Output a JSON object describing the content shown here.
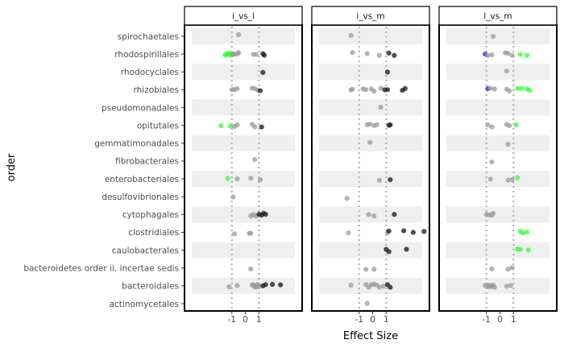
{
  "chart_data": {
    "type": "scatter",
    "xlabel": "Effect Size",
    "ylabel": "order",
    "xlim": [
      -4.5,
      4.2
    ],
    "x_ticks": [
      "-1",
      "0",
      "1"
    ],
    "x_tick_values": [
      -1,
      0,
      1
    ],
    "reference_lines": [
      -1,
      1
    ],
    "grid": false,
    "legend": "none",
    "categories": [
      "spirochaetales",
      "rhodospirillales",
      "rhodocyclales",
      "rhizobiales",
      "pseudomonadales",
      "opitutales",
      "gemmatimonadales",
      "fibrobacterales",
      "enterobacteriales",
      "desulfovibrionales",
      "cytophagales",
      "clostridiales",
      "caulobacterales",
      "bacteroidetes order ii. incertae sedis",
      "bacteroidales",
      "actinomycetales"
    ],
    "point_colors": {
      "ns": "#999999",
      "strong": "#222222",
      "up": "#33ff33",
      "down": "#2222ee"
    },
    "panels": [
      {
        "name": "i_vs_l",
        "points": [
          {
            "y": "spirochaetales",
            "x": -0.5,
            "c": "ns"
          },
          {
            "y": "rhodospirillales",
            "x": -1.5,
            "c": "up"
          },
          {
            "y": "rhodospirillales",
            "x": -1.4,
            "c": "up"
          },
          {
            "y": "rhodospirillales",
            "x": -1.3,
            "c": "up"
          },
          {
            "y": "rhodospirillales",
            "x": -1.2,
            "c": "up"
          },
          {
            "y": "rhodospirillales",
            "x": -1.1,
            "c": "up"
          },
          {
            "y": "rhodospirillales",
            "x": -1.0,
            "c": "up"
          },
          {
            "y": "rhodospirillales",
            "x": -0.9,
            "c": "ns"
          },
          {
            "y": "rhodospirillales",
            "x": -0.8,
            "c": "ns"
          },
          {
            "y": "rhodospirillales",
            "x": -0.6,
            "c": "ns"
          },
          {
            "y": "rhodospirillales",
            "x": -0.5,
            "c": "ns"
          },
          {
            "y": "rhodospirillales",
            "x": 0.6,
            "c": "ns"
          },
          {
            "y": "rhodospirillales",
            "x": 0.8,
            "c": "ns"
          },
          {
            "y": "rhodospirillales",
            "x": 1.3,
            "c": "strong"
          },
          {
            "y": "rhodospirillales",
            "x": 1.4,
            "c": "strong"
          },
          {
            "y": "rhodocyclales",
            "x": 1.3,
            "c": "strong"
          },
          {
            "y": "rhizobiales",
            "x": -1.0,
            "c": "ns"
          },
          {
            "y": "rhizobiales",
            "x": -0.8,
            "c": "ns"
          },
          {
            "y": "rhizobiales",
            "x": -0.6,
            "c": "ns"
          },
          {
            "y": "rhizobiales",
            "x": 0.5,
            "c": "ns"
          },
          {
            "y": "rhizobiales",
            "x": 0.7,
            "c": "ns"
          },
          {
            "y": "rhizobiales",
            "x": 0.9,
            "c": "ns"
          },
          {
            "y": "rhizobiales",
            "x": 1.1,
            "c": "strong"
          },
          {
            "y": "opitutales",
            "x": -1.8,
            "c": "up"
          },
          {
            "y": "opitutales",
            "x": -1.1,
            "c": "up"
          },
          {
            "y": "opitutales",
            "x": -0.8,
            "c": "ns"
          },
          {
            "y": "opitutales",
            "x": -0.6,
            "c": "ns"
          },
          {
            "y": "opitutales",
            "x": 0.5,
            "c": "ns"
          },
          {
            "y": "opitutales",
            "x": 0.7,
            "c": "ns"
          },
          {
            "y": "opitutales",
            "x": 1.2,
            "c": "strong"
          },
          {
            "y": "fibrobacterales",
            "x": 0.7,
            "c": "ns"
          },
          {
            "y": "enterobacteriales",
            "x": -1.3,
            "c": "up"
          },
          {
            "y": "enterobacteriales",
            "x": -0.6,
            "c": "ns"
          },
          {
            "y": "enterobacteriales",
            "x": 0.4,
            "c": "ns"
          },
          {
            "y": "enterobacteriales",
            "x": 1.1,
            "c": "ns"
          },
          {
            "y": "desulfovibrionales",
            "x": -0.9,
            "c": "ns"
          },
          {
            "y": "cytophagales",
            "x": 0.4,
            "c": "ns"
          },
          {
            "y": "cytophagales",
            "x": 0.6,
            "c": "ns"
          },
          {
            "y": "cytophagales",
            "x": 0.8,
            "c": "ns"
          },
          {
            "y": "cytophagales",
            "x": 1.0,
            "c": "strong"
          },
          {
            "y": "cytophagales",
            "x": 1.2,
            "c": "strong"
          },
          {
            "y": "cytophagales",
            "x": 1.35,
            "c": "strong"
          },
          {
            "y": "cytophagales",
            "x": 1.5,
            "c": "strong"
          },
          {
            "y": "clostridiales",
            "x": -0.8,
            "c": "ns"
          },
          {
            "y": "clostridiales",
            "x": 0.3,
            "c": "ns"
          },
          {
            "y": "clostridiales",
            "x": 0.4,
            "c": "ns"
          },
          {
            "y": "bacteroidetes order ii. incertae sedis",
            "x": 0.4,
            "c": "ns"
          },
          {
            "y": "bacteroidales",
            "x": -1.2,
            "c": "ns"
          },
          {
            "y": "bacteroidales",
            "x": -0.6,
            "c": "ns"
          },
          {
            "y": "bacteroidales",
            "x": 0.5,
            "c": "ns"
          },
          {
            "y": "bacteroidales",
            "x": 0.6,
            "c": "ns"
          },
          {
            "y": "bacteroidales",
            "x": 0.7,
            "c": "ns"
          },
          {
            "y": "bacteroidales",
            "x": 0.8,
            "c": "ns"
          },
          {
            "y": "bacteroidales",
            "x": 0.9,
            "c": "ns"
          },
          {
            "y": "bacteroidales",
            "x": 1.0,
            "c": "ns"
          },
          {
            "y": "bacteroidales",
            "x": 1.3,
            "c": "strong"
          },
          {
            "y": "bacteroidales",
            "x": 1.5,
            "c": "strong"
          },
          {
            "y": "bacteroidales",
            "x": 2.0,
            "c": "strong"
          },
          {
            "y": "bacteroidales",
            "x": 2.6,
            "c": "strong"
          }
        ]
      },
      {
        "name": "i_vs_m",
        "points": [
          {
            "y": "spirochaetales",
            "x": -1.6,
            "c": "ns"
          },
          {
            "y": "rhodospirillales",
            "x": -1.5,
            "c": "ns"
          },
          {
            "y": "rhodospirillales",
            "x": -0.4,
            "c": "ns"
          },
          {
            "y": "rhodospirillales",
            "x": 0.5,
            "c": "ns"
          },
          {
            "y": "rhodospirillales",
            "x": 1.2,
            "c": "strong"
          },
          {
            "y": "rhodospirillales",
            "x": 1.6,
            "c": "strong"
          },
          {
            "y": "rhodocyclales",
            "x": 1.1,
            "c": "strong"
          },
          {
            "y": "rhizobiales",
            "x": -1.6,
            "c": "ns"
          },
          {
            "y": "rhizobiales",
            "x": -1.5,
            "c": "ns"
          },
          {
            "y": "rhizobiales",
            "x": -0.7,
            "c": "ns"
          },
          {
            "y": "rhizobiales",
            "x": -0.5,
            "c": "ns"
          },
          {
            "y": "rhizobiales",
            "x": -0.1,
            "c": "ns"
          },
          {
            "y": "rhizobiales",
            "x": 0.1,
            "c": "ns"
          },
          {
            "y": "rhizobiales",
            "x": 0.6,
            "c": "ns"
          },
          {
            "y": "rhizobiales",
            "x": 0.9,
            "c": "strong"
          },
          {
            "y": "rhizobiales",
            "x": 1.1,
            "c": "strong"
          },
          {
            "y": "rhizobiales",
            "x": 2.2,
            "c": "strong"
          },
          {
            "y": "rhizobiales",
            "x": 2.4,
            "c": "strong"
          },
          {
            "y": "pseudomonadales",
            "x": 0.6,
            "c": "ns"
          },
          {
            "y": "opitutales",
            "x": -0.4,
            "c": "ns"
          },
          {
            "y": "opitutales",
            "x": -0.2,
            "c": "ns"
          },
          {
            "y": "opitutales",
            "x": 0.1,
            "c": "ns"
          },
          {
            "y": "opitutales",
            "x": 0.3,
            "c": "ns"
          },
          {
            "y": "opitutales",
            "x": 1.2,
            "c": "strong"
          },
          {
            "y": "opitutales",
            "x": 1.3,
            "c": "strong"
          },
          {
            "y": "gemmatimonadales",
            "x": -0.2,
            "c": "ns"
          },
          {
            "y": "enterobacteriales",
            "x": 0.5,
            "c": "ns"
          },
          {
            "y": "enterobacteriales",
            "x": 1.3,
            "c": "strong"
          },
          {
            "y": "desulfovibrionales",
            "x": -1.9,
            "c": "ns"
          },
          {
            "y": "cytophagales",
            "x": -0.3,
            "c": "ns"
          },
          {
            "y": "cytophagales",
            "x": 0.1,
            "c": "ns"
          },
          {
            "y": "cytophagales",
            "x": 1.6,
            "c": "strong"
          },
          {
            "y": "clostridiales",
            "x": -1.8,
            "c": "ns"
          },
          {
            "y": "clostridiales",
            "x": 1.1,
            "c": "ns"
          },
          {
            "y": "clostridiales",
            "x": 1.2,
            "c": "strong"
          },
          {
            "y": "clostridiales",
            "x": 2.3,
            "c": "strong"
          },
          {
            "y": "clostridiales",
            "x": 3.0,
            "c": "strong"
          },
          {
            "y": "clostridiales",
            "x": 3.8,
            "c": "strong"
          },
          {
            "y": "caulobacterales",
            "x": 1.0,
            "c": "strong"
          },
          {
            "y": "caulobacterales",
            "x": 1.2,
            "c": "strong"
          },
          {
            "y": "caulobacterales",
            "x": 2.5,
            "c": "strong"
          },
          {
            "y": "bacteroidetes order ii. incertae sedis",
            "x": -0.5,
            "c": "ns"
          },
          {
            "y": "bacteroidetes order ii. incertae sedis",
            "x": 0.1,
            "c": "ns"
          },
          {
            "y": "bacteroidales",
            "x": -1.6,
            "c": "ns"
          },
          {
            "y": "bacteroidales",
            "x": -0.5,
            "c": "ns"
          },
          {
            "y": "bacteroidales",
            "x": -0.3,
            "c": "ns"
          },
          {
            "y": "bacteroidales",
            "x": -0.1,
            "c": "ns"
          },
          {
            "y": "bacteroidales",
            "x": 0.1,
            "c": "ns"
          },
          {
            "y": "bacteroidales",
            "x": 0.3,
            "c": "ns"
          },
          {
            "y": "bacteroidales",
            "x": 0.5,
            "c": "ns"
          },
          {
            "y": "bacteroidales",
            "x": 0.8,
            "c": "ns"
          },
          {
            "y": "bacteroidales",
            "x": 1.1,
            "c": "strong"
          },
          {
            "y": "bacteroidales",
            "x": 1.3,
            "c": "strong"
          },
          {
            "y": "actinomycetales",
            "x": -0.4,
            "c": "ns"
          }
        ]
      },
      {
        "name": "l_vs_m",
        "points": [
          {
            "y": "spirochaetales",
            "x": -0.5,
            "c": "ns"
          },
          {
            "y": "rhodospirillales",
            "x": -1.1,
            "c": "down"
          },
          {
            "y": "rhodospirillales",
            "x": -0.9,
            "c": "ns"
          },
          {
            "y": "rhodospirillales",
            "x": -0.6,
            "c": "ns"
          },
          {
            "y": "rhodospirillales",
            "x": 0.4,
            "c": "ns"
          },
          {
            "y": "rhodospirillales",
            "x": 0.6,
            "c": "ns"
          },
          {
            "y": "rhodospirillales",
            "x": 0.9,
            "c": "ns"
          },
          {
            "y": "rhodospirillales",
            "x": 1.5,
            "c": "up"
          },
          {
            "y": "rhodospirillales",
            "x": 2.0,
            "c": "up"
          },
          {
            "y": "rhodocyclales",
            "x": 0.5,
            "c": "ns"
          },
          {
            "y": "rhizobiales",
            "x": -0.9,
            "c": "down"
          },
          {
            "y": "rhizobiales",
            "x": -0.7,
            "c": "ns"
          },
          {
            "y": "rhizobiales",
            "x": -0.4,
            "c": "ns"
          },
          {
            "y": "rhizobiales",
            "x": 0.5,
            "c": "ns"
          },
          {
            "y": "rhizobiales",
            "x": 0.7,
            "c": "ns"
          },
          {
            "y": "rhizobiales",
            "x": 1.3,
            "c": "up"
          },
          {
            "y": "rhizobiales",
            "x": 1.6,
            "c": "up"
          },
          {
            "y": "rhizobiales",
            "x": 2.0,
            "c": "up"
          },
          {
            "y": "rhizobiales",
            "x": 2.2,
            "c": "up"
          },
          {
            "y": "opitutales",
            "x": -0.9,
            "c": "ns"
          },
          {
            "y": "opitutales",
            "x": -0.6,
            "c": "ns"
          },
          {
            "y": "opitutales",
            "x": 0.5,
            "c": "ns"
          },
          {
            "y": "opitutales",
            "x": 0.7,
            "c": "ns"
          },
          {
            "y": "opitutales",
            "x": 1.2,
            "c": "up"
          },
          {
            "y": "gemmatimonadales",
            "x": 0.6,
            "c": "ns"
          },
          {
            "y": "fibrobacterales",
            "x": -0.6,
            "c": "ns"
          },
          {
            "y": "enterobacteriales",
            "x": -0.7,
            "c": "ns"
          },
          {
            "y": "enterobacteriales",
            "x": 0.6,
            "c": "ns"
          },
          {
            "y": "enterobacteriales",
            "x": 0.9,
            "c": "ns"
          },
          {
            "y": "enterobacteriales",
            "x": 1.3,
            "c": "up"
          },
          {
            "y": "cytophagales",
            "x": -1.0,
            "c": "ns"
          },
          {
            "y": "cytophagales",
            "x": -0.8,
            "c": "ns"
          },
          {
            "y": "cytophagales",
            "x": -0.6,
            "c": "ns"
          },
          {
            "y": "cytophagales",
            "x": -0.5,
            "c": "ns"
          },
          {
            "y": "clostridiales",
            "x": 1.5,
            "c": "up"
          },
          {
            "y": "clostridiales",
            "x": 1.7,
            "c": "up"
          },
          {
            "y": "clostridiales",
            "x": 2.0,
            "c": "up"
          },
          {
            "y": "caulobacterales",
            "x": 1.3,
            "c": "up"
          },
          {
            "y": "caulobacterales",
            "x": 1.5,
            "c": "up"
          },
          {
            "y": "caulobacterales",
            "x": 2.1,
            "c": "up"
          },
          {
            "y": "bacteroidetes order ii. incertae sedis",
            "x": -0.6,
            "c": "ns"
          },
          {
            "y": "bacteroidetes order ii. incertae sedis",
            "x": 0.6,
            "c": "ns"
          },
          {
            "y": "bacteroidetes order ii. incertae sedis",
            "x": 0.9,
            "c": "ns"
          },
          {
            "y": "bacteroidales",
            "x": -1.1,
            "c": "ns"
          },
          {
            "y": "bacteroidales",
            "x": -0.9,
            "c": "ns"
          },
          {
            "y": "bacteroidales",
            "x": -0.8,
            "c": "ns"
          },
          {
            "y": "bacteroidales",
            "x": -0.7,
            "c": "ns"
          },
          {
            "y": "bacteroidales",
            "x": -0.6,
            "c": "ns"
          },
          {
            "y": "bacteroidales",
            "x": -0.5,
            "c": "ns"
          },
          {
            "y": "bacteroidales",
            "x": -0.4,
            "c": "ns"
          },
          {
            "y": "bacteroidales",
            "x": 0.5,
            "c": "ns"
          },
          {
            "y": "bacteroidales",
            "x": 0.8,
            "c": "ns"
          }
        ]
      }
    ]
  }
}
